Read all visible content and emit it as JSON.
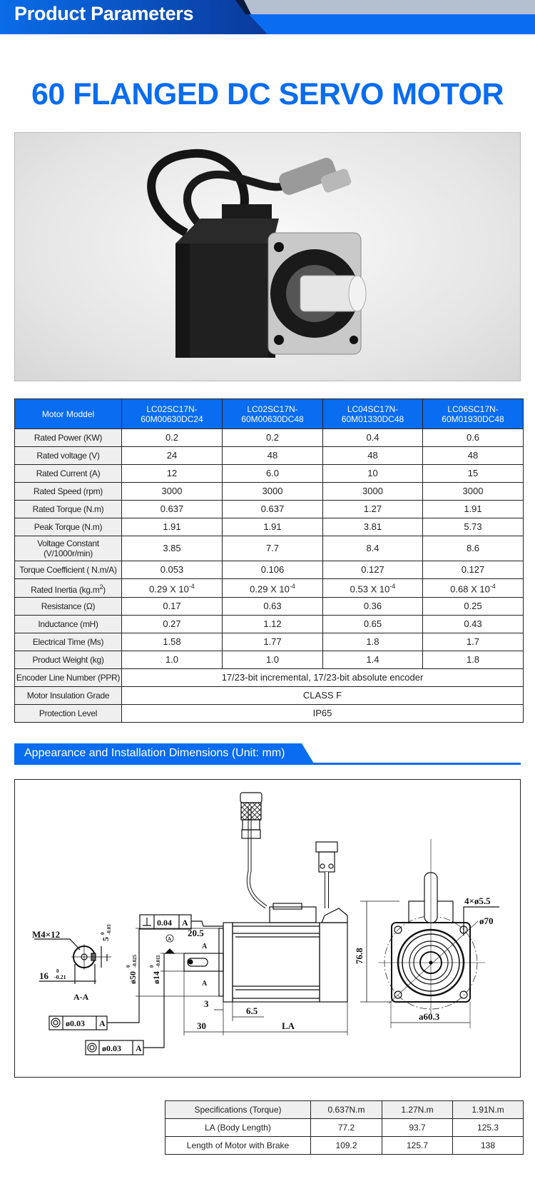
{
  "header": {
    "title": "Product Parameters"
  },
  "product": {
    "title": "60 FLANGED DC SERVO MOTOR"
  },
  "colors": {
    "accent": "#0a6cf0",
    "dark_blue": "#0a3a9a",
    "label_bg": "#efefef"
  },
  "spec_table": {
    "header": [
      "Motor Moddel",
      "LC02SC17N-60M00630DC24",
      "LC02SC17N-60M00630DC48",
      "LC04SC17N-60M01330DC48",
      "LC06SC17N-60M01930DC48"
    ],
    "rows": [
      {
        "label": "Rated Power (KW)",
        "values": [
          "0.2",
          "0.2",
          "0.4",
          "0.6"
        ]
      },
      {
        "label": "Rated voltage (V)",
        "values": [
          "24",
          "48",
          "48",
          "48"
        ]
      },
      {
        "label": "Rated Current (A)",
        "values": [
          "12",
          "6.0",
          "10",
          "15"
        ]
      },
      {
        "label": "Rated Speed (rpm)",
        "values": [
          "3000",
          "3000",
          "3000",
          "3000"
        ]
      },
      {
        "label": "Rated Torque (N.m)",
        "values": [
          "0.637",
          "0.637",
          "1.27",
          "1.91"
        ]
      },
      {
        "label": "Peak Torque (N.m)",
        "values": [
          "1.91",
          "1.91",
          "3.81",
          "5.73"
        ]
      },
      {
        "label": "Voltage Constant (V/1000r/min)",
        "values": [
          "3.85",
          "7.7",
          "8.4",
          "8.6"
        ]
      },
      {
        "label": "Torque Coefficient ( N.m/A)",
        "values": [
          "0.053",
          "0.106",
          "0.127",
          "0.127"
        ]
      },
      {
        "label": "Rated Inertia (kg.m",
        "label_sup": "2",
        "label_end": ")",
        "values": [
          "0.29 X 10",
          "0.29 X 10",
          "0.53 X 10",
          "0.68 X 10"
        ],
        "exp": "-4"
      },
      {
        "label": "Resistance (Ω)",
        "values": [
          "0.17",
          "0.63",
          "0.36",
          "0.25"
        ]
      },
      {
        "label": "Inductance (mH)",
        "values": [
          "0.27",
          "1.12",
          "0.65",
          "0.43"
        ]
      },
      {
        "label": "Electrical Time (Ms)",
        "values": [
          "1.58",
          "1.77",
          "1.8",
          "1.7"
        ]
      },
      {
        "label": "Product Weight (kg)",
        "values": [
          "1.0",
          "1.0",
          "1.4",
          "1.8"
        ]
      },
      {
        "label": "Encoder Line Number (PPR)",
        "value": "17/23-bit incremental, 17/23-bit absolute encoder"
      },
      {
        "label": "Motor Insulation Grade",
        "value": "CLASS F"
      },
      {
        "label": "Protection Level",
        "value": "IP65"
      }
    ]
  },
  "dimensions_section": {
    "title": "Appearance and Installation Dimensions (Unit: mm)"
  },
  "drawing": {
    "perp_tol": "0.04",
    "datum": "A",
    "conc_tol": "ø0.03",
    "thread": "M4×12",
    "key_w": "5",
    "key_w_tol": "-0.03",
    "key_h": "16",
    "key_h_tol": "-0.21",
    "zero": "0",
    "section": "A-A",
    "pilot": "ø50",
    "pilot_tol": "-0.025",
    "shaft": "ø14",
    "shaft_tol": "-0.011",
    "key_len": "20.5",
    "sec_mark": "A",
    "d3": "3",
    "d65": "6.5",
    "d30": "30",
    "la": "LA",
    "height": "76.8",
    "holes": "4×ø5.5",
    "pcd": "ø70",
    "square": "a60.3"
  },
  "dims_table": {
    "header": [
      "Specifications (Torque)",
      "0.637N.m",
      "1.27N.m",
      "1.91N.m"
    ],
    "rows": [
      {
        "label": "LA (Body Length)",
        "values": [
          "77.2",
          "93.7",
          "125.3"
        ]
      },
      {
        "label": "Length of Motor with Brake",
        "values": [
          "109.2",
          "125.7",
          "138"
        ]
      }
    ]
  }
}
